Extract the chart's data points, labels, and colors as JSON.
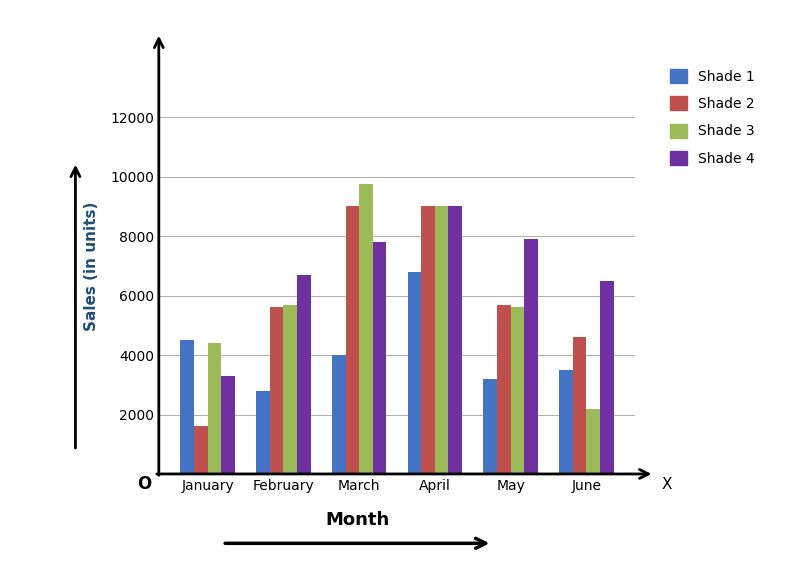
{
  "categories": [
    "January",
    "February",
    "March",
    "April",
    "May",
    "June"
  ],
  "series": {
    "Shade 1": [
      4500,
      2800,
      4000,
      6800,
      3200,
      3500
    ],
    "Shade 2": [
      1600,
      5600,
      9000,
      9000,
      5700,
      4600
    ],
    "Shade 3": [
      4400,
      5700,
      9750,
      9000,
      5600,
      2200
    ],
    "Shade 4": [
      3300,
      6700,
      7800,
      9000,
      7900,
      6500
    ]
  },
  "colors": {
    "Shade 1": "#4472C4",
    "Shade 2": "#C0504D",
    "Shade 3": "#9BBB59",
    "Shade 4": "#7030A0"
  },
  "ylabel": "Sales (in units)",
  "xlabel_arrow": "Month",
  "x_arrow_label": "X",
  "ylim": [
    0,
    14000
  ],
  "yticks": [
    2000,
    4000,
    6000,
    8000,
    10000,
    12000
  ],
  "origin_label": "O",
  "bar_width": 0.18,
  "background_color": "#ffffff",
  "grid_color": "#b0b0b0",
  "legend_fontsize": 10,
  "ylabel_fontsize": 11,
  "tick_fontsize": 10
}
